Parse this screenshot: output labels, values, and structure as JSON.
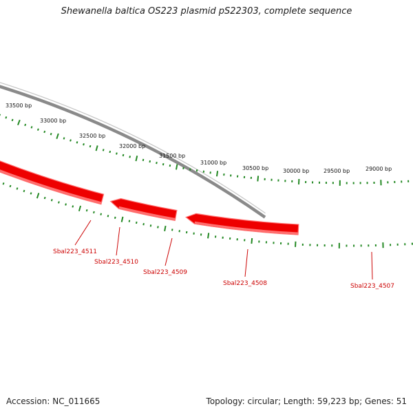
{
  "header": {
    "title": "Shewanella baltica OS223 plasmid pS22303, complete sequence"
  },
  "footer": {
    "accession": "Accession: NC_011665",
    "summary": "Topology: circular; Length: 59,223 bp; Genes: 51"
  },
  "ruler": {
    "labels": [
      "33500 bp",
      "33000 bp",
      "32500 bp",
      "32000 bp",
      "31500 bp",
      "31000 bp",
      "30500 bp",
      "30000 bp",
      "29500 bp",
      "29000 bp"
    ]
  },
  "genes": [
    {
      "name": "Sbal223_4511"
    },
    {
      "name": "Sbal223_4510"
    },
    {
      "name": "Sbal223_4509"
    },
    {
      "name": "Sbal223_4508"
    },
    {
      "name": "Sbal223_4507"
    }
  ],
  "colors": {
    "gene_fill": "#ee0000",
    "gene_shade": "#ff7070",
    "gene_label": "#cc0000",
    "ruler_tick": "#228822",
    "backbone": "#8a8a8a"
  }
}
